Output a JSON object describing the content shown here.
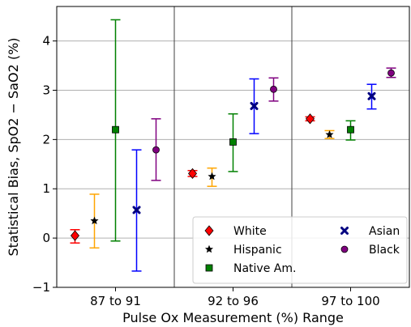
{
  "chart_data": {
    "type": "scatter",
    "xlabel": "Pulse Ox Measurement (%) Range",
    "ylabel": "Statistical Bias, SpO2 − SaO2 (%)",
    "categories": [
      "87 to 91",
      "92 to 96",
      "97 to 100"
    ],
    "ylim": [
      -1,
      4.7
    ],
    "yticks": [
      -1,
      0,
      1,
      2,
      3,
      4
    ],
    "ytick_labels": [
      "−1",
      "0",
      "1",
      "2",
      "3",
      "4"
    ],
    "grid": "horizontal",
    "group_separators": true,
    "legend": {
      "position": "bottom-right",
      "columns": 2
    },
    "series": [
      {
        "name": "White",
        "color": "#ff0000",
        "marker": "diamond",
        "values": [
          0.05,
          1.31,
          2.42
        ],
        "lower": [
          -0.1,
          1.25,
          2.38
        ],
        "upper": [
          0.17,
          1.37,
          2.46
        ],
        "errorbar_color": "#ff0000"
      },
      {
        "name": "Hispanic",
        "color": "#000000",
        "marker": "star",
        "values": [
          0.35,
          1.25,
          2.1
        ],
        "lower": [
          -0.2,
          1.05,
          2.02
        ],
        "upper": [
          0.89,
          1.42,
          2.18
        ],
        "errorbar_color": "#ffa500"
      },
      {
        "name": "Native Am.",
        "color": "#008000",
        "marker": "square",
        "values": [
          2.2,
          1.95,
          2.2
        ],
        "lower": [
          -0.06,
          1.35,
          1.99
        ],
        "upper": [
          4.43,
          2.52,
          2.38
        ],
        "errorbar_color": "#008000"
      },
      {
        "name": "Asian",
        "color": "#000080",
        "marker": "x",
        "values": [
          0.57,
          2.68,
          2.88
        ],
        "lower": [
          -0.67,
          2.12,
          2.62
        ],
        "upper": [
          1.79,
          3.23,
          3.12
        ],
        "errorbar_color": "#0000ff"
      },
      {
        "name": "Black",
        "color": "#800080",
        "marker": "circle",
        "values": [
          1.79,
          3.02,
          3.35
        ],
        "lower": [
          1.17,
          2.78,
          3.26
        ],
        "upper": [
          2.42,
          3.25,
          3.45
        ],
        "errorbar_color": "#800080"
      }
    ]
  }
}
